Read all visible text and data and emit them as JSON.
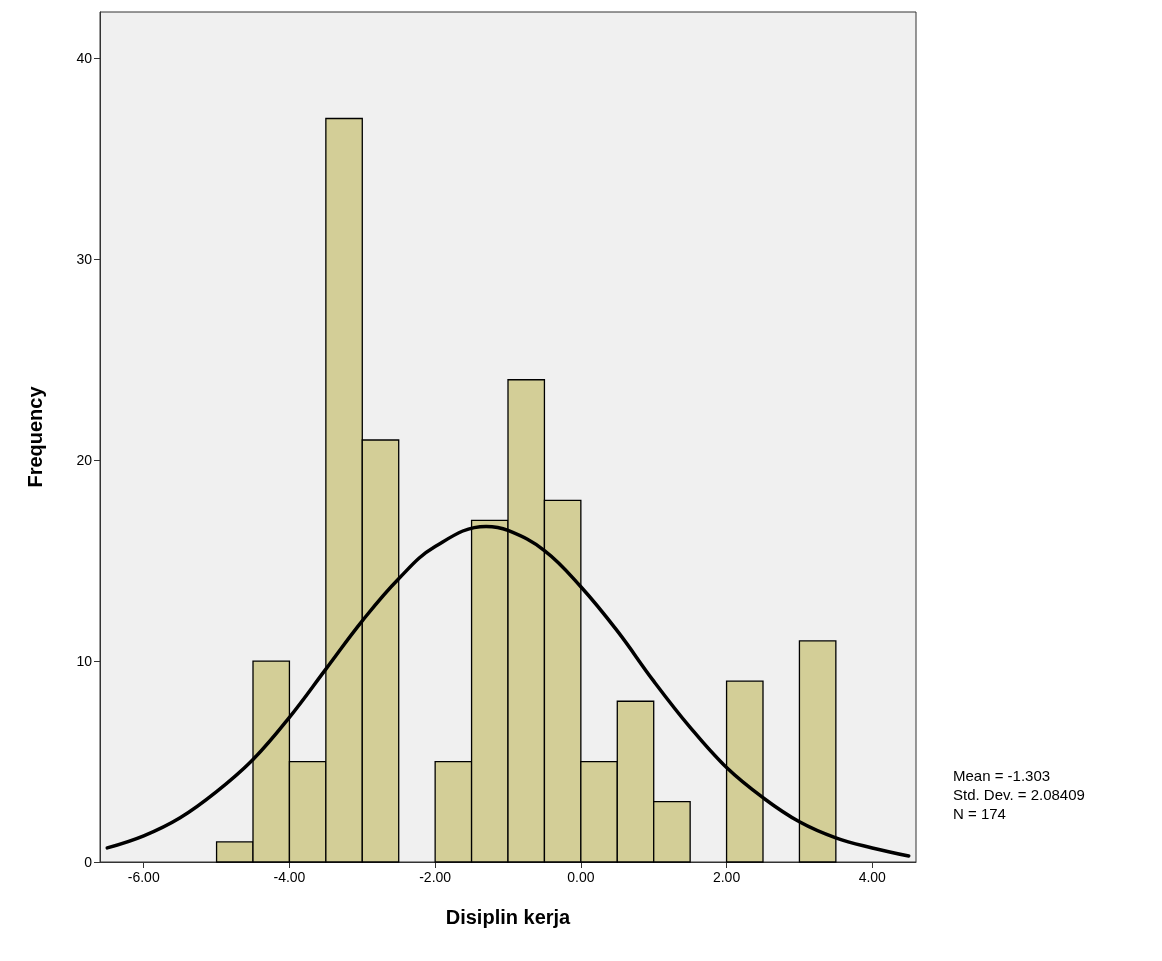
{
  "chart_data": {
    "type": "histogram",
    "xlabel": "Disiplin kerja",
    "ylabel": "Frequency",
    "bins": [
      -5,
      -4.5,
      -4,
      -3.5,
      -3,
      -2.5,
      -2,
      -1.5,
      -1,
      -0.5,
      0,
      0.5,
      1,
      1.5,
      2,
      2.5,
      3,
      3.5
    ],
    "series": [
      {
        "color": "#d3ce97",
        "values": [
          1,
          10,
          5,
          37,
          21,
          0,
          5,
          17,
          24,
          18,
          5,
          8,
          3,
          0,
          9,
          0,
          11
        ]
      },
      {
        "type": "line",
        "color": "#000000",
        "marker": "none",
        "x": [
          -6.5,
          -6,
          -5.5,
          -5,
          -4.5,
          -4,
          -3.5,
          -3,
          -2.5,
          -2,
          -1.3,
          -1,
          -0.5,
          0,
          0.5,
          1,
          1.5,
          2,
          2.5,
          3,
          3.5,
          4,
          4.5
        ],
        "values": [
          0.7,
          1.3,
          2.2,
          3.5,
          5.1,
          7.2,
          9.6,
          12,
          14.1,
          15.7,
          16.7,
          16.5,
          15.5,
          13.7,
          11.5,
          9,
          6.7,
          4.7,
          3.2,
          2,
          1.2,
          0.7,
          0.3
        ]
      }
    ],
    "xlim": [
      -6.6,
      4.6
    ],
    "xticks": [
      {
        "value": -6,
        "label": "-6.00"
      },
      {
        "value": -4,
        "label": "-4.00"
      },
      {
        "value": -2,
        "label": "-2.00"
      },
      {
        "value": 0,
        "label": "0.00"
      },
      {
        "value": 2,
        "label": "2.00"
      },
      {
        "value": 4,
        "label": "4.00"
      }
    ],
    "ylim": [
      0,
      42.3
    ],
    "yticks": [
      0,
      10,
      20,
      30,
      40
    ],
    "grid": false,
    "annotations": [
      "Mean = -1.303",
      "Std. Dev. = 2.08409",
      "N = 174"
    ]
  }
}
